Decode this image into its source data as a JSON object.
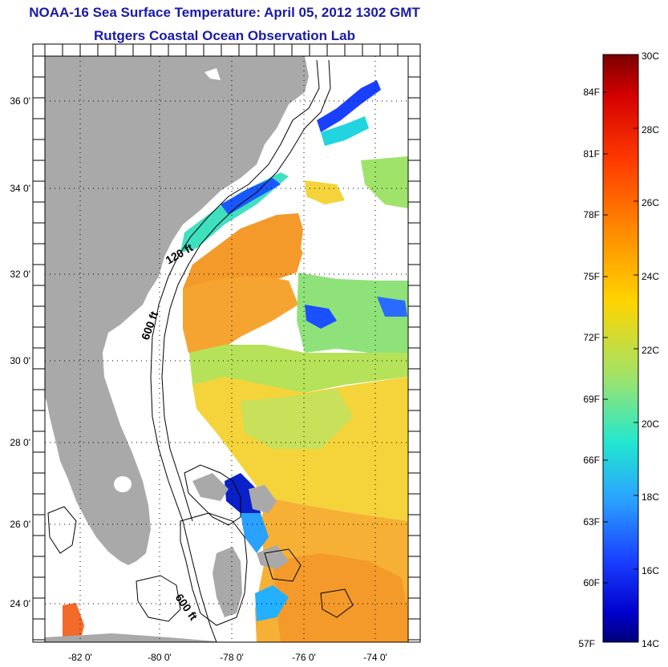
{
  "header": {
    "title": "NOAA-16 Sea Surface Temperature:  April 05, 2012 1302 GMT",
    "subtitle": "Rutgers Coastal Ocean Observation Lab"
  },
  "map": {
    "lat_labels": [
      "36 0'",
      "34 0'",
      "32 0'",
      "30 0'",
      "28 0'",
      "26 0'",
      "24 0'"
    ],
    "lon_labels": [
      "-82 0'",
      "-80 0'",
      "-78 0'",
      "-76 0'",
      "-74 0'"
    ],
    "isobaths": [
      "120 ft",
      "600 ft",
      "600 ft"
    ],
    "colors": {
      "land": "#a9a9a9",
      "ocean_warm": "#f39a2a",
      "ocean_mid": "#f4d43a",
      "ocean_cool": "#8fe27a"
    }
  },
  "colorbar": {
    "celsius": [
      "30C",
      "28C",
      "26C",
      "24C",
      "22C",
      "20C",
      "18C",
      "16C",
      "14C"
    ],
    "fahrenheit": [
      "84F",
      "81F",
      "78F",
      "75F",
      "72F",
      "69F",
      "66F",
      "63F",
      "60F",
      "57F"
    ]
  }
}
